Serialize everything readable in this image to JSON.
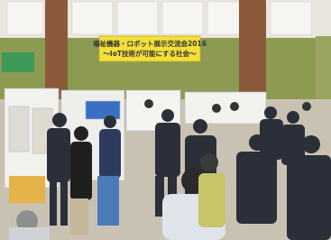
{
  "banner": {
    "line1": "福祉機器・ロボット展示交流会2016",
    "line2": "～IoT技術が可能にする社会～"
  }
}
